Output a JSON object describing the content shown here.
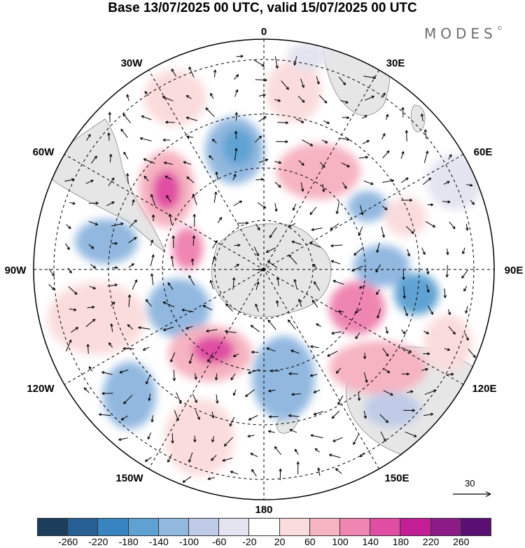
{
  "title": "Base 13/07/2025 00 UTC, valid 15/07/2025 00 UTC",
  "brand": "MODES",
  "brand_mark": "©",
  "meridian_labels": [
    {
      "key": "m0",
      "text": "0"
    },
    {
      "key": "m30e",
      "text": "30E"
    },
    {
      "key": "m60e",
      "text": "60E"
    },
    {
      "key": "m90e",
      "text": "90E"
    },
    {
      "key": "m120e",
      "text": "120E"
    },
    {
      "key": "m150e",
      "text": "150E"
    },
    {
      "key": "m180",
      "text": "180"
    },
    {
      "key": "m150w",
      "text": "150W"
    },
    {
      "key": "m120w",
      "text": "120W"
    },
    {
      "key": "m90w",
      "text": "90W"
    },
    {
      "key": "m60w",
      "text": "60W"
    },
    {
      "key": "m30w",
      "text": "30W"
    }
  ],
  "reference_vector": {
    "label": "30"
  },
  "legend": {
    "labels": [
      "-260",
      "-220",
      "-180",
      "-140",
      "-100",
      "-60",
      "-20",
      "20",
      "60",
      "100",
      "140",
      "180",
      "220",
      "260"
    ],
    "colors": [
      "#1d3d5c",
      "#255f94",
      "#3684c0",
      "#5ea2d3",
      "#92b8e0",
      "#bfcbe7",
      "#e4e4f1",
      "#ffffff",
      "#fbdcdc",
      "#f6b3c1",
      "#ef85b1",
      "#e04ea3",
      "#c31e95",
      "#8c1a87",
      "#5a0f73"
    ]
  },
  "field_colors": {
    "land": "#e6e6e6",
    "coast": "#7a7a7a",
    "grid": "#000000"
  }
}
